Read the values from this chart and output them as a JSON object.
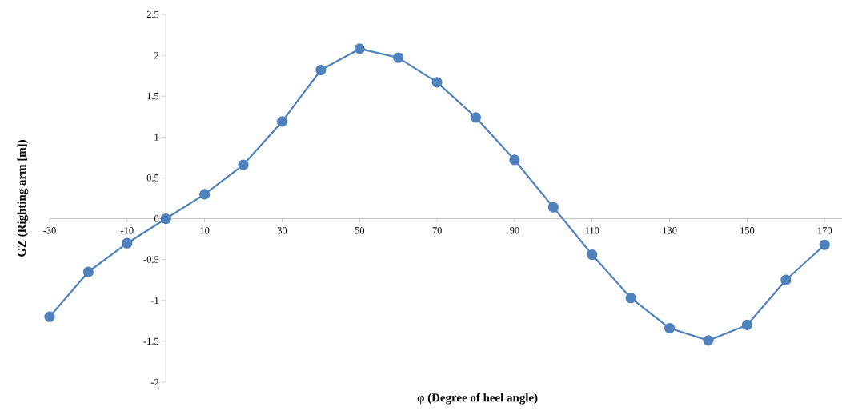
{
  "chart_data": {
    "type": "line",
    "xlabel": "φ (Degree of heel angle)",
    "ylabel": "GZ (Righting arm [m])",
    "x": [
      -30,
      -20,
      -10,
      0,
      10,
      20,
      30,
      40,
      50,
      60,
      70,
      80,
      90,
      100,
      110,
      120,
      130,
      140,
      150,
      160,
      170
    ],
    "series": [
      {
        "color": "#4f81bd",
        "values": [
          -1.2,
          -0.65,
          -0.3,
          0,
          0.3,
          0.66,
          1.19,
          1.82,
          2.08,
          1.97,
          1.67,
          1.24,
          0.72,
          0.14,
          -0.44,
          -0.97,
          -1.34,
          -1.49,
          -1.3,
          -0.75,
          -0.32
        ]
      }
    ],
    "xlim": [
      -30,
      174.5
    ],
    "ylim": [
      -2,
      2.5
    ],
    "xticks": [
      -30,
      -10,
      10,
      30,
      50,
      70,
      90,
      110,
      130,
      150,
      170
    ],
    "yticks": [
      -2,
      -1.5,
      -1,
      -0.5,
      0,
      0.5,
      1,
      1.5,
      2,
      2.5
    ],
    "marker": "circle",
    "line_style": "solid",
    "grid": false,
    "legend": false
  }
}
